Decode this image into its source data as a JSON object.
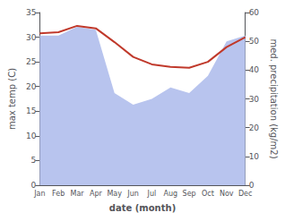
{
  "chart_data": {
    "type": "line",
    "xlabel": "date (month)",
    "ylabel": "max temp (C)",
    "y2label": "med. precipitation (kg/m2)",
    "categories": [
      "Jan",
      "Feb",
      "Mar",
      "Apr",
      "May",
      "Jun",
      "Jul",
      "Aug",
      "Sep",
      "Oct",
      "Nov",
      "Dec"
    ],
    "series": [
      {
        "type": "area",
        "color": "#b8c4ee",
        "axis": "y2",
        "values": [
          52,
          52,
          55,
          54,
          32,
          28,
          30,
          34,
          32,
          38,
          50,
          52
        ]
      },
      {
        "type": "line",
        "color": "#c0392b",
        "values": [
          30.8,
          31.0,
          32.3,
          31.8,
          29.0,
          26.0,
          24.5,
          24.0,
          23.8,
          25.0,
          28.0,
          30.0
        ]
      }
    ],
    "ylim": [
      0,
      35
    ],
    "yticks": [
      0,
      5,
      10,
      15,
      20,
      25,
      30,
      35
    ],
    "y2lim": [
      0,
      60
    ],
    "y2ticks": [
      0,
      10,
      20,
      30,
      40,
      50,
      60
    ],
    "grid": false
  }
}
